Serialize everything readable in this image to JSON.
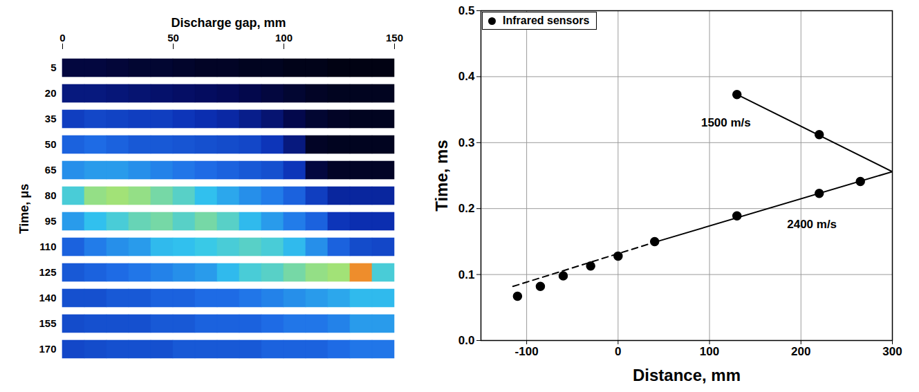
{
  "chart_data": [
    {
      "type": "heatmap",
      "x_label": "Discharge gap, mm",
      "y_label": "Time, μs",
      "xlim": [
        0,
        150
      ],
      "xticks": [
        0,
        50,
        100,
        150
      ],
      "x_bins": [
        0,
        10,
        20,
        30,
        40,
        50,
        60,
        70,
        80,
        90,
        100,
        110,
        120,
        130,
        140,
        150
      ],
      "categories": [
        5,
        20,
        35,
        50,
        65,
        80,
        95,
        110,
        125,
        140,
        155,
        170
      ],
      "intensity_range": [
        0,
        1
      ],
      "cells": [
        [
          0.1,
          0.1,
          0.09,
          0.08,
          0.08,
          0.07,
          0.06,
          0.06,
          0.05,
          0.05,
          0.04,
          0.04,
          0.03,
          0.03,
          0.03
        ],
        [
          0.2,
          0.2,
          0.19,
          0.18,
          0.17,
          0.16,
          0.15,
          0.14,
          0.12,
          0.1,
          0.08,
          0.06,
          0.05,
          0.05,
          0.05
        ],
        [
          0.32,
          0.34,
          0.33,
          0.32,
          0.32,
          0.3,
          0.28,
          0.26,
          0.22,
          0.18,
          0.12,
          0.08,
          0.06,
          0.05,
          0.05
        ],
        [
          0.4,
          0.42,
          0.4,
          0.38,
          0.38,
          0.37,
          0.36,
          0.35,
          0.34,
          0.3,
          0.2,
          0.06,
          0.05,
          0.05,
          0.05
        ],
        [
          0.48,
          0.5,
          0.5,
          0.48,
          0.46,
          0.44,
          0.42,
          0.4,
          0.38,
          0.36,
          0.3,
          0.1,
          0.06,
          0.06,
          0.06
        ],
        [
          0.6,
          0.7,
          0.72,
          0.7,
          0.66,
          0.62,
          0.56,
          0.52,
          0.48,
          0.45,
          0.4,
          0.32,
          0.25,
          0.25,
          0.25
        ],
        [
          0.5,
          0.56,
          0.6,
          0.64,
          0.66,
          0.62,
          0.66,
          0.62,
          0.55,
          0.5,
          0.45,
          0.4,
          0.3,
          0.28,
          0.28
        ],
        [
          0.4,
          0.45,
          0.48,
          0.5,
          0.55,
          0.56,
          0.58,
          0.6,
          0.62,
          0.6,
          0.55,
          0.48,
          0.4,
          0.35,
          0.34
        ],
        [
          0.38,
          0.4,
          0.42,
          0.44,
          0.46,
          0.48,
          0.5,
          0.55,
          0.6,
          0.62,
          0.66,
          0.7,
          0.72,
          0.92,
          0.6
        ],
        [
          0.36,
          0.36,
          0.38,
          0.38,
          0.4,
          0.4,
          0.42,
          0.42,
          0.44,
          0.46,
          0.48,
          0.5,
          0.52,
          0.55,
          0.55
        ],
        [
          0.35,
          0.36,
          0.36,
          0.36,
          0.38,
          0.38,
          0.4,
          0.4,
          0.4,
          0.42,
          0.44,
          0.44,
          0.46,
          0.5,
          0.5
        ],
        [
          0.34,
          0.35,
          0.36,
          0.36,
          0.36,
          0.38,
          0.38,
          0.38,
          0.38,
          0.4,
          0.4,
          0.4,
          0.42,
          0.44,
          0.44
        ]
      ]
    },
    {
      "type": "scatter",
      "x_label": "Distance, mm",
      "y_label": "Time, ms",
      "xlim": [
        -150,
        300
      ],
      "xticks": [
        -100,
        0,
        100,
        200,
        300
      ],
      "ylim": [
        0,
        0.5
      ],
      "yticks": [
        {
          "value": 0,
          "label": "0.0"
        },
        {
          "value": 0.1,
          "label": "0.1"
        },
        {
          "value": 0.2,
          "label": "0.2"
        },
        {
          "value": 0.3,
          "label": "0.3"
        },
        {
          "value": 0.4,
          "label": "0.4"
        },
        {
          "value": 0.5,
          "label": "0.5"
        }
      ],
      "grid": true,
      "legend": "top-left",
      "series": [
        {
          "name": "Infrared sensors",
          "color": "#000000",
          "marker": "circle",
          "x": [
            -110,
            -85,
            -60,
            -30,
            0,
            40,
            130,
            220,
            265,
            130,
            220
          ],
          "values": [
            0.067,
            0.082,
            0.098,
            0.113,
            0.128,
            0.15,
            0.189,
            0.223,
            0.241,
            0.373,
            0.312
          ]
        }
      ],
      "lines": [
        {
          "type": "line",
          "color": "#000000",
          "line_style": "dashed",
          "x": [
            -115,
            40
          ],
          "values": [
            0.082,
            0.149
          ]
        },
        {
          "type": "line",
          "color": "#000000",
          "line_style": "solid",
          "x": [
            40,
            300
          ],
          "values": [
            0.149,
            0.256
          ]
        },
        {
          "type": "line",
          "color": "#000000",
          "line_style": "solid",
          "x": [
            130,
            300
          ],
          "values": [
            0.373,
            0.256
          ]
        }
      ],
      "annotations": [
        {
          "text": "1500 m/s",
          "x": 118,
          "y": 0.33
        },
        {
          "text": "2400 m/s",
          "x": 212,
          "y": 0.176
        }
      ]
    }
  ]
}
